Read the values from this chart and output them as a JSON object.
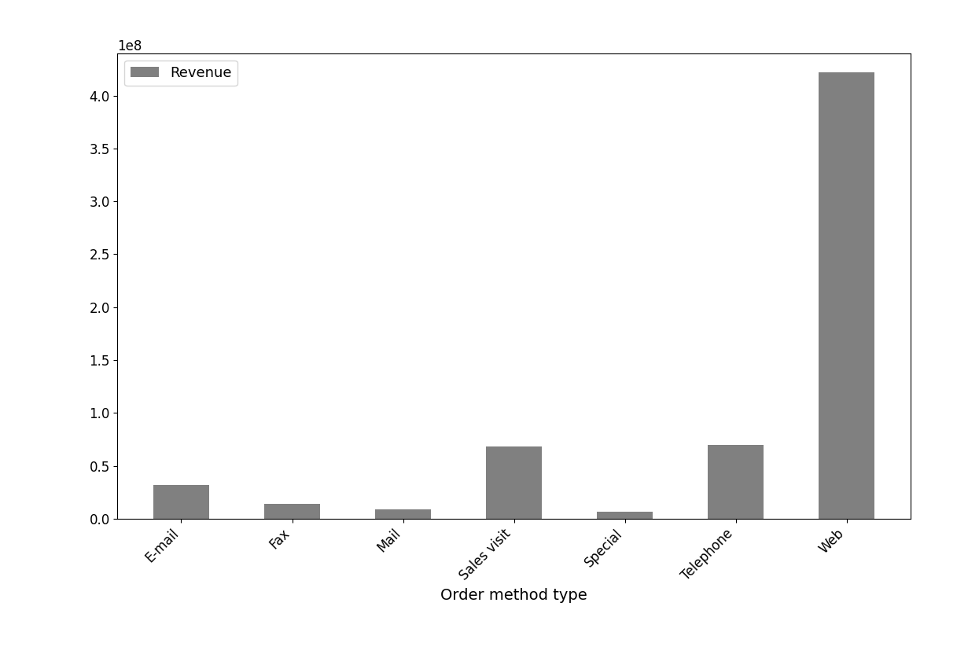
{
  "categories": [
    "E-mail",
    "Fax",
    "Mail",
    "Sales visit",
    "Special",
    "Telephone",
    "Web"
  ],
  "values": [
    32000000.0,
    14000000.0,
    9000000.0,
    68000000.0,
    6500000.0,
    70000000.0,
    422000000.0
  ],
  "bar_color": "#808080",
  "xlabel": "Order method type",
  "legend_label": "Revenue",
  "ylim": [
    0,
    440000000.0
  ],
  "background_color": "#ffffff",
  "label_fontsize": 14,
  "tick_fontsize": 12,
  "legend_fontsize": 13
}
